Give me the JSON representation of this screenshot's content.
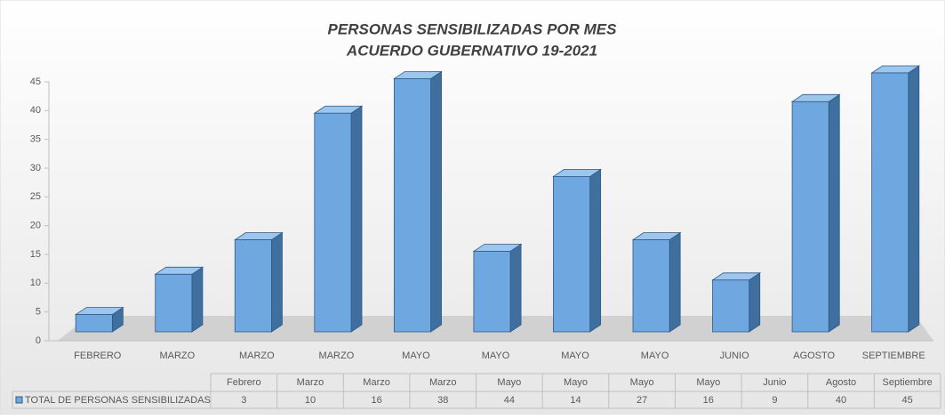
{
  "chart_data": {
    "type": "bar3d",
    "title": [
      "PERSONAS SENSIBILIZADAS POR MES",
      "ACUERDO GUBERNATIVO 19-2021"
    ],
    "categories": [
      "FEBRERO",
      "MARZO",
      "MARZO",
      "MARZO",
      "MAYO",
      "MAYO",
      "MAYO",
      "MAYO",
      "JUNIO",
      "AGOSTO",
      "SEPTIEMBRE"
    ],
    "table_header": [
      "Febrero",
      "Marzo",
      "Marzo",
      "Marzo",
      "Mayo",
      "Mayo",
      "Mayo",
      "Mayo",
      "Junio",
      "Agosto",
      "Septiembre"
    ],
    "series": [
      {
        "name": "TOTAL DE PERSONAS SENSIBILIZADAS",
        "color": "#6fa8e0",
        "values": [
          3,
          10,
          16,
          38,
          44,
          14,
          27,
          16,
          9,
          40,
          45
        ]
      }
    ],
    "ylim": [
      0,
      45
    ],
    "yticks": [
      0,
      5,
      10,
      15,
      20,
      25,
      30,
      35,
      40,
      45
    ]
  }
}
